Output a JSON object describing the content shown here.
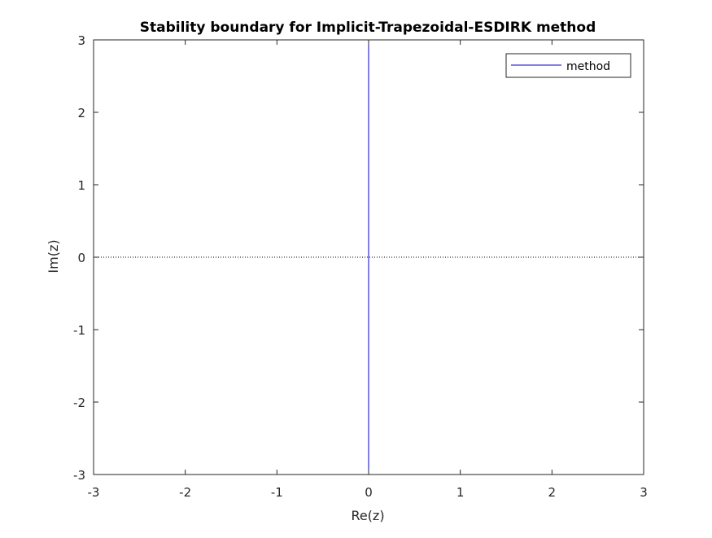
{
  "chart_data": {
    "type": "line",
    "title": "Stability boundary for Implicit-Trapezoidal-ESDIRK method",
    "xlabel": "Re(z)",
    "ylabel": "Im(z)",
    "xlim": [
      -3,
      3
    ],
    "ylim": [
      -3,
      3
    ],
    "xticks": [
      -3,
      -2,
      -1,
      0,
      1,
      2,
      3
    ],
    "yticks": [
      -3,
      -2,
      -1,
      0,
      1,
      2,
      3
    ],
    "grid": false,
    "legend_position": "top-right",
    "reference_line": {
      "y": 0,
      "style": "dotted",
      "color": "#000000"
    },
    "series": [
      {
        "name": "method",
        "color": "#0000cc",
        "x": [
          0,
          0
        ],
        "y": [
          -3,
          3
        ]
      }
    ]
  }
}
